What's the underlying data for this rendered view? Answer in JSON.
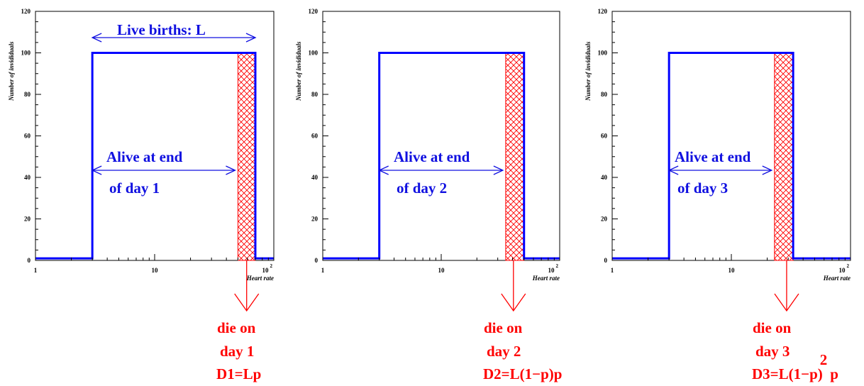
{
  "colors": {
    "histogram": "#0000ff",
    "annotation": "#1010e0",
    "death": "#ff0000",
    "axis": "#000000"
  },
  "chart_data": [
    {
      "type": "step-histogram",
      "xscale": "log",
      "xlim": [
        1,
        100
      ],
      "ylim": [
        0,
        120
      ],
      "xlabel": "Heart rate",
      "ylabel": "Number of invididuals",
      "x_ticks": [
        "1",
        "10",
        "10^2"
      ],
      "y_ticks": [
        "0",
        "20",
        "40",
        "60",
        "80",
        "100",
        "120"
      ],
      "steps": [
        {
          "x_from": 1,
          "x_to": 3,
          "y": 1
        },
        {
          "x_from": 3,
          "x_to": 70,
          "y": 100
        },
        {
          "x_from": 70,
          "x_to": 100,
          "y": 1
        }
      ],
      "hatched_band": {
        "x_from": 50,
        "x_to": 70,
        "y": 100
      },
      "top_annotation": "Live births: L",
      "alive_line1": "Alive at end",
      "alive_line2": "of day 1",
      "death_lines": [
        "die on",
        "day 1",
        "D1=Lp"
      ]
    },
    {
      "type": "step-histogram",
      "xscale": "log",
      "xlim": [
        1,
        100
      ],
      "ylim": [
        0,
        120
      ],
      "xlabel": "Heart rate",
      "ylabel": "Number of invididuals",
      "x_ticks": [
        "1",
        "10",
        "10^2"
      ],
      "y_ticks": [
        "0",
        "20",
        "40",
        "60",
        "80",
        "100",
        "120"
      ],
      "steps": [
        {
          "x_from": 1,
          "x_to": 3,
          "y": 1
        },
        {
          "x_from": 3,
          "x_to": 50,
          "y": 100
        },
        {
          "x_from": 50,
          "x_to": 100,
          "y": 1
        }
      ],
      "hatched_band": {
        "x_from": 35,
        "x_to": 50,
        "y": 100
      },
      "top_annotation": "",
      "alive_line1": "Alive at end",
      "alive_line2": "of day 2",
      "death_lines": [
        "die on",
        "day 2",
        "D2=L(1−p)p"
      ]
    },
    {
      "type": "step-histogram",
      "xscale": "log",
      "xlim": [
        1,
        100
      ],
      "ylim": [
        0,
        120
      ],
      "xlabel": "Heart rate",
      "ylabel": "Number of invididuals",
      "x_ticks": [
        "1",
        "10",
        "10^2"
      ],
      "y_ticks": [
        "0",
        "20",
        "40",
        "60",
        "80",
        "100",
        "120"
      ],
      "steps": [
        {
          "x_from": 1,
          "x_to": 3,
          "y": 1
        },
        {
          "x_from": 3,
          "x_to": 33,
          "y": 100
        },
        {
          "x_from": 33,
          "x_to": 100,
          "y": 1
        }
      ],
      "hatched_band": {
        "x_from": 23,
        "x_to": 33,
        "y": 100
      },
      "top_annotation": "",
      "alive_line1": "Alive at end",
      "alive_line2": "of day 3",
      "death_lines": [
        "die on",
        "day 3",
        "D3=L(1−p)",
        "2",
        "p"
      ]
    }
  ]
}
